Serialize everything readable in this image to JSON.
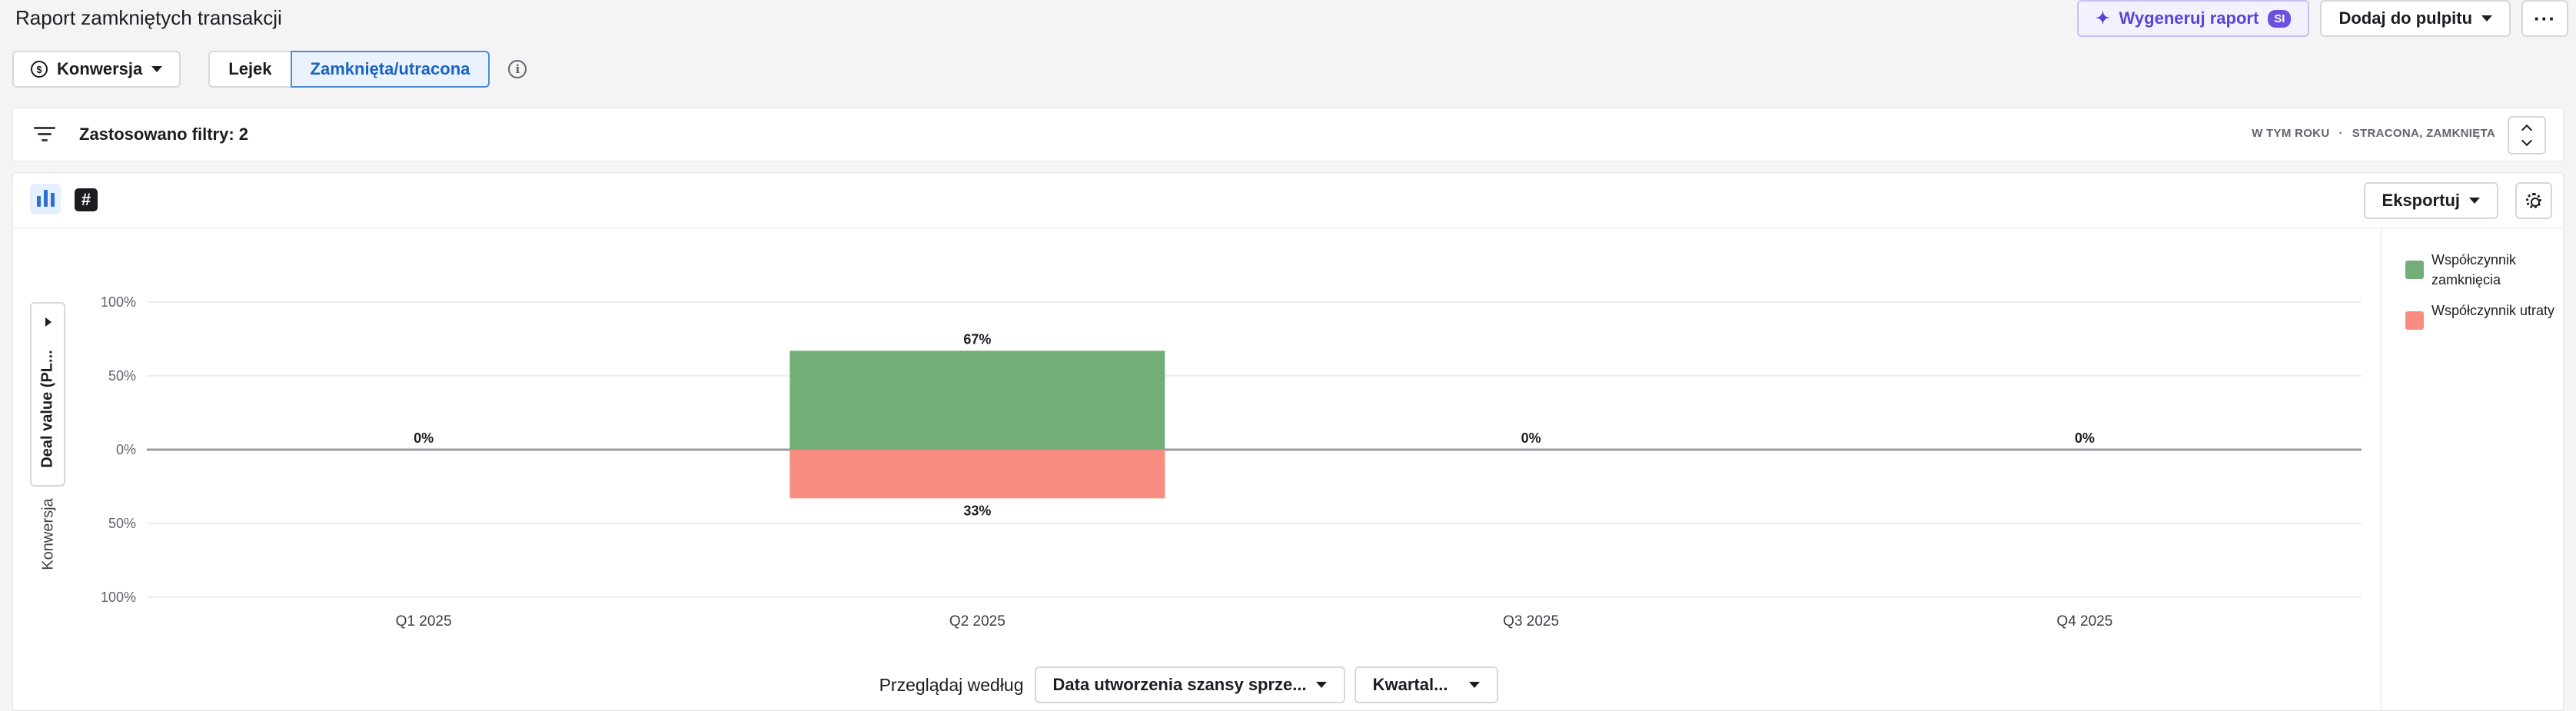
{
  "header": {
    "title": "Raport zamkniętych transakcji",
    "ai_button_label": "Wygeneruj raport",
    "ai_badge": "SI",
    "add_dashboard_label": "Dodaj do pulpitu",
    "more_label": "···"
  },
  "controls": {
    "metric_label": "Konwersja",
    "metric_icon": "dollar-circle-icon",
    "tabs": [
      "Lejek",
      "Zamknięta/utracona"
    ],
    "active_tab": "Zamknięta/utracona"
  },
  "filters": {
    "label": "Zastosowano filtry: 2",
    "period": "W TYM ROKU",
    "status": "STRACONA, ZAMKNIĘTA"
  },
  "panel": {
    "export_label": "Eksportuj",
    "view_number_glyph": "#",
    "y_collapsed_label": "Deal value (PL...",
    "y_axis_title": "Konwersja",
    "browse_label": "Przeglądaj według",
    "group_by_value": "Data utworzenia szansy sprze...",
    "interval_value": "Kwartal..."
  },
  "colors": {
    "won": "#73ae78",
    "lost": "#f78c80",
    "accent": "#2f6fd0"
  },
  "chart_data": {
    "type": "bar",
    "categories": [
      "Q1 2025",
      "Q2 2025",
      "Q3 2025",
      "Q4 2025"
    ],
    "series": [
      {
        "name": "Współczynnik zamknięcia",
        "values": [
          0,
          67,
          0,
          0
        ],
        "labels": [
          "0%",
          "67%",
          "0%",
          "0%"
        ]
      },
      {
        "name": "Współczynnik utraty",
        "values": [
          0,
          33,
          0,
          0
        ],
        "labels": [
          "",
          "33%",
          "",
          ""
        ]
      }
    ],
    "y_ticks": [
      "100%",
      "50%",
      "0%",
      "50%",
      "100%"
    ],
    "ylim": [
      -100,
      100
    ],
    "xlabel": "",
    "ylabel": "Konwersja",
    "grid": true,
    "legend": [
      "Współczynnik zamknięcia",
      "Współczynnik utraty"
    ],
    "legend_position": "right"
  }
}
